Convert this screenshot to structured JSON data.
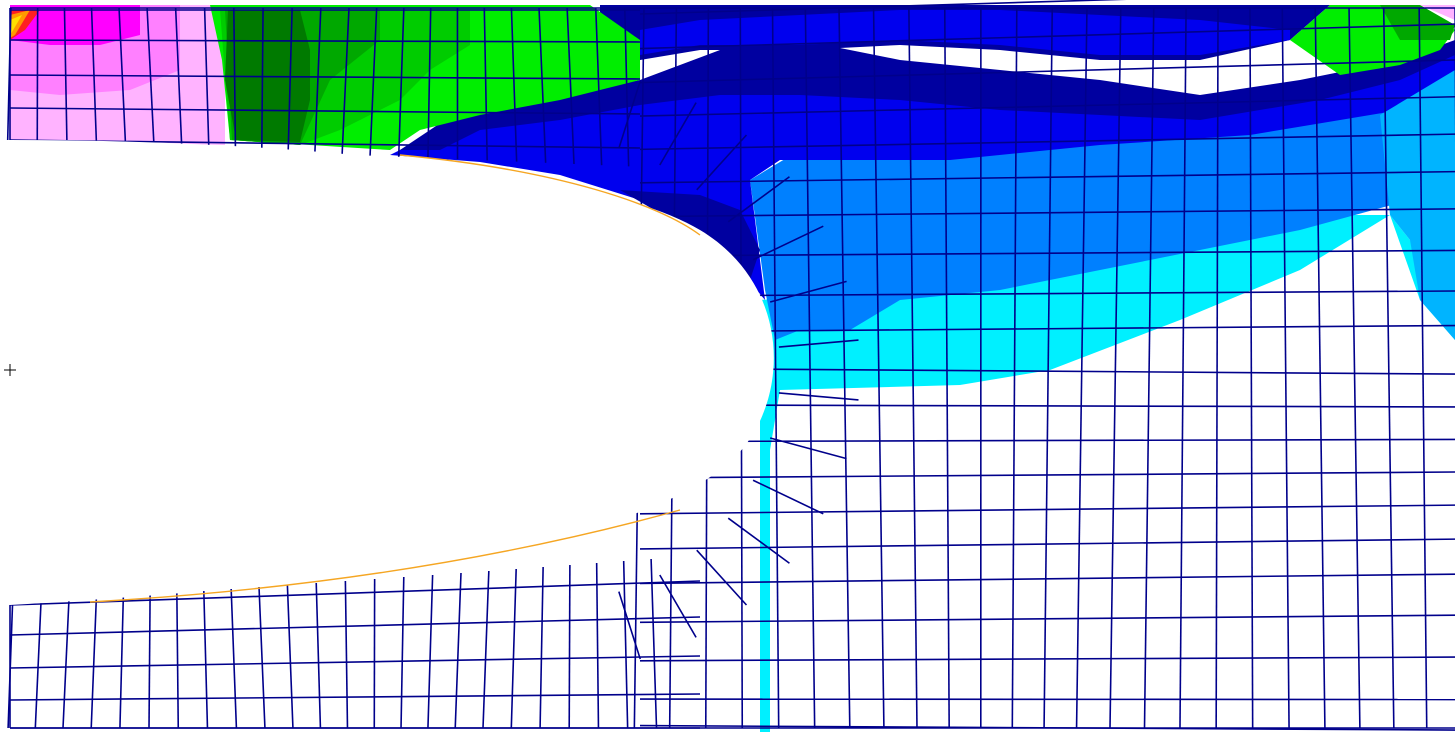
{
  "view": {
    "background": "#ffffff",
    "mesh_color": "#00008b",
    "hole_fill": "#ffffff",
    "hole_edge_color": "#f5a623"
  },
  "contour_colors": {
    "magenta": "#ff00ff",
    "pink": "#ff80ff",
    "light-pink": "#ffb3ff",
    "red": "#ff2020",
    "orange": "#ff9a00",
    "yellow": "#ffe000",
    "dark-green": "#007a00",
    "green": "#00a800",
    "mid-green": "#00cc00",
    "bright-green": "#00ee00",
    "navy": "#0000a0",
    "blue": "#0000ee",
    "mid-blue": "#0080ff",
    "light-blue": "#00b4ff",
    "cyan": "#00f0ff",
    "white": "#ffffff"
  },
  "icons": {
    "origin": "crosshair-icon"
  }
}
